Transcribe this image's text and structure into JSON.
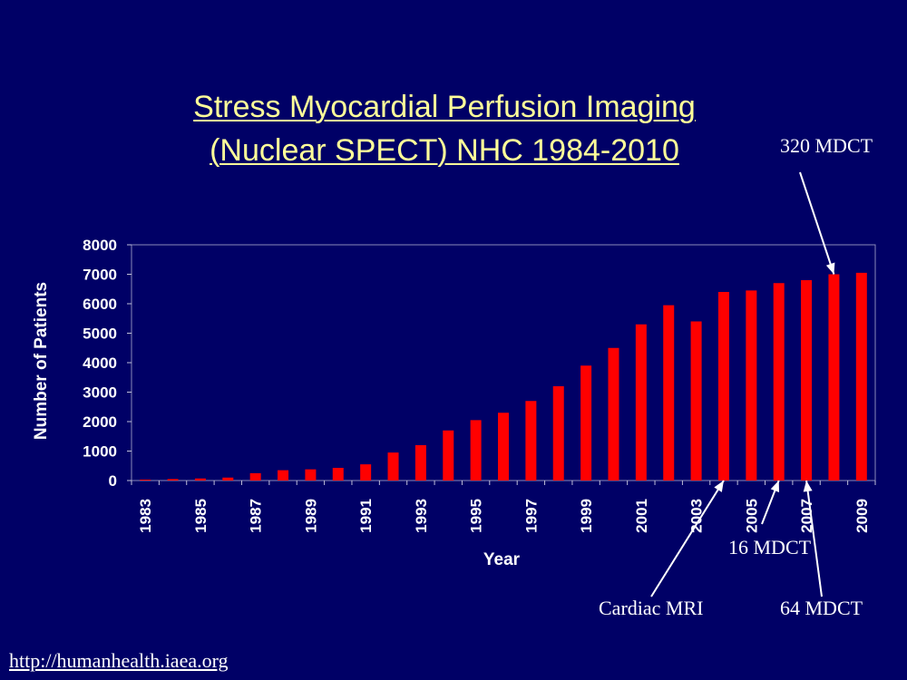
{
  "chart_data": {
    "type": "bar",
    "title_line1": "Stress Myocardial Perfusion Imaging",
    "title_line2": "(Nuclear SPECT) NHC 1984-2010",
    "xlabel": "Year",
    "ylabel": "Number of Patients",
    "ylim": [
      0,
      8000
    ],
    "yticks": [
      0,
      1000,
      2000,
      3000,
      4000,
      5000,
      6000,
      7000,
      8000
    ],
    "categories": [
      "1983",
      "1984",
      "1985",
      "1986",
      "1987",
      "1988",
      "1989",
      "1990",
      "1991",
      "1992",
      "1993",
      "1994",
      "1995",
      "1996",
      "1997",
      "1998",
      "1999",
      "2000",
      "2001",
      "2002",
      "2003",
      "2004",
      "2005",
      "2006",
      "2007",
      "2008",
      "2009"
    ],
    "tick_labels": [
      "1983",
      "1985",
      "1987",
      "1989",
      "1991",
      "1993",
      "1995",
      "1997",
      "1999",
      "2001",
      "2003",
      "2005",
      "2007",
      "2009"
    ],
    "values": [
      30,
      50,
      70,
      100,
      250,
      350,
      380,
      430,
      550,
      950,
      1200,
      1700,
      2050,
      2300,
      2700,
      3200,
      3900,
      4500,
      5300,
      5950,
      5400,
      6400,
      6450,
      6700,
      6800,
      7000,
      7050
    ],
    "colors": {
      "bar": "#ff0000",
      "background": "#000066",
      "title": "#ffff99",
      "text": "#ffffff"
    },
    "grid": false,
    "annotations": [
      {
        "text": "320 MDCT",
        "target": "2008"
      },
      {
        "text": "16 MDCT",
        "target": "2006"
      },
      {
        "text": "Cardiac MRI",
        "target": "2004"
      },
      {
        "text": "64 MDCT",
        "target": "2007"
      }
    ]
  },
  "footer_link": "http://humanhealth.iaea.org"
}
